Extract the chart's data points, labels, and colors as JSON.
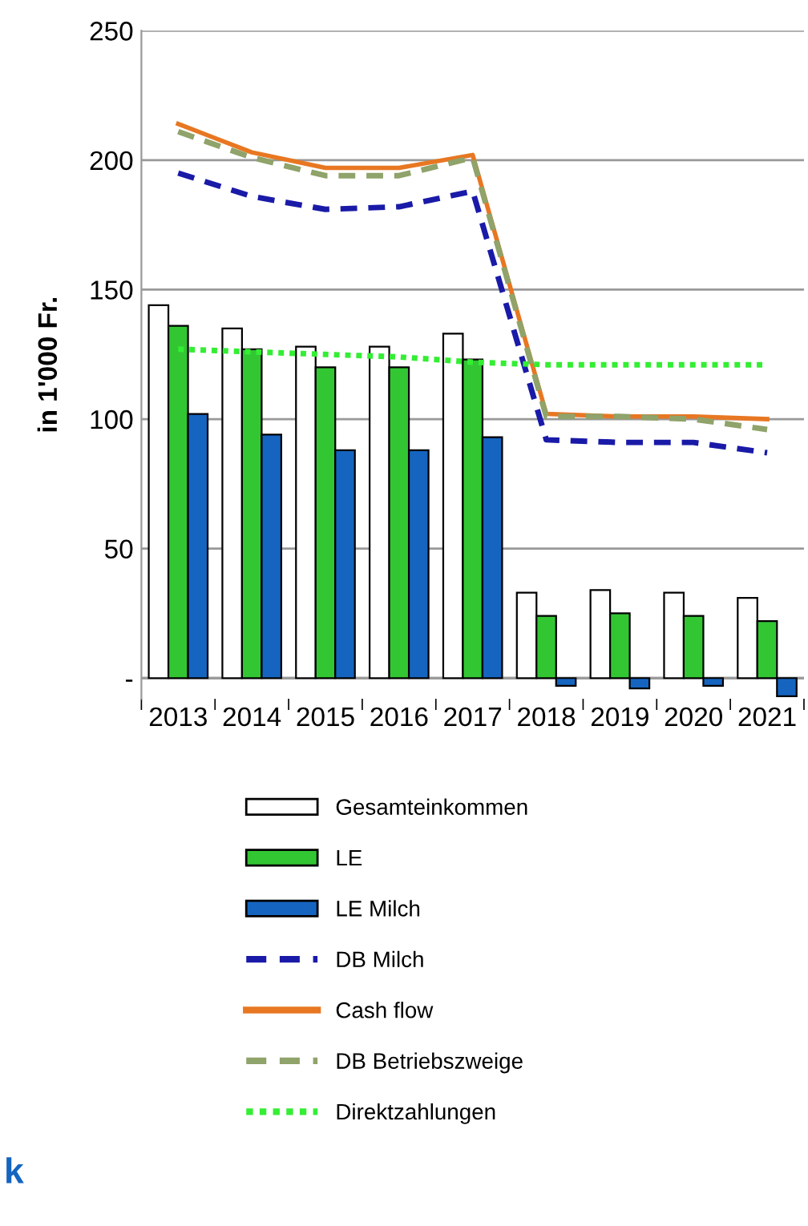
{
  "chart_data": {
    "type": "bar",
    "ylabel": "in 1'000 Fr.",
    "categories": [
      "2013",
      "2014",
      "2015",
      "2016",
      "2017",
      "2018",
      "2019",
      "2020",
      "2021"
    ],
    "series": [
      {
        "name": "Gesamteinkommen",
        "color": "#ffffff",
        "values": [
          144,
          135,
          128,
          128,
          133,
          33,
          34,
          33,
          31
        ]
      },
      {
        "name": "LE",
        "color": "#33c633",
        "values": [
          136,
          127,
          120,
          120,
          123,
          24,
          25,
          24,
          22
        ]
      },
      {
        "name": "LE Milch",
        "color": "#1565c0",
        "values": [
          102,
          94,
          88,
          88,
          93,
          -3,
          -4,
          -3,
          -7
        ]
      },
      {
        "name": "DB Milch",
        "type": "line",
        "line_style": "dashed",
        "color": "#1a1aa8",
        "values": [
          195,
          186,
          181,
          182,
          188,
          92,
          91,
          91,
          87
        ]
      },
      {
        "name": "Cash flow",
        "type": "line",
        "line_style": "solid",
        "color": "#e87722",
        "values": [
          214,
          203,
          197,
          197,
          202,
          102,
          101,
          101,
          100
        ]
      },
      {
        "name": "DB Betriebszweige",
        "type": "line",
        "line_style": "dashed",
        "color": "#8fa36a",
        "values": [
          211,
          201,
          194,
          194,
          201,
          101,
          101,
          100,
          96
        ]
      },
      {
        "name": "Direktzahlungen",
        "type": "line",
        "line_style": "dotted",
        "color": "#33ee33",
        "values": [
          127,
          126,
          125,
          124,
          122,
          121,
          121,
          121,
          121
        ]
      }
    ],
    "ylim": [
      -8,
      250
    ],
    "yticks": [
      {
        "value": 0,
        "label": "-"
      },
      50,
      100,
      150,
      200,
      250
    ],
    "grid": "y",
    "legend": "bottom",
    "annotations": [
      "k"
    ]
  }
}
